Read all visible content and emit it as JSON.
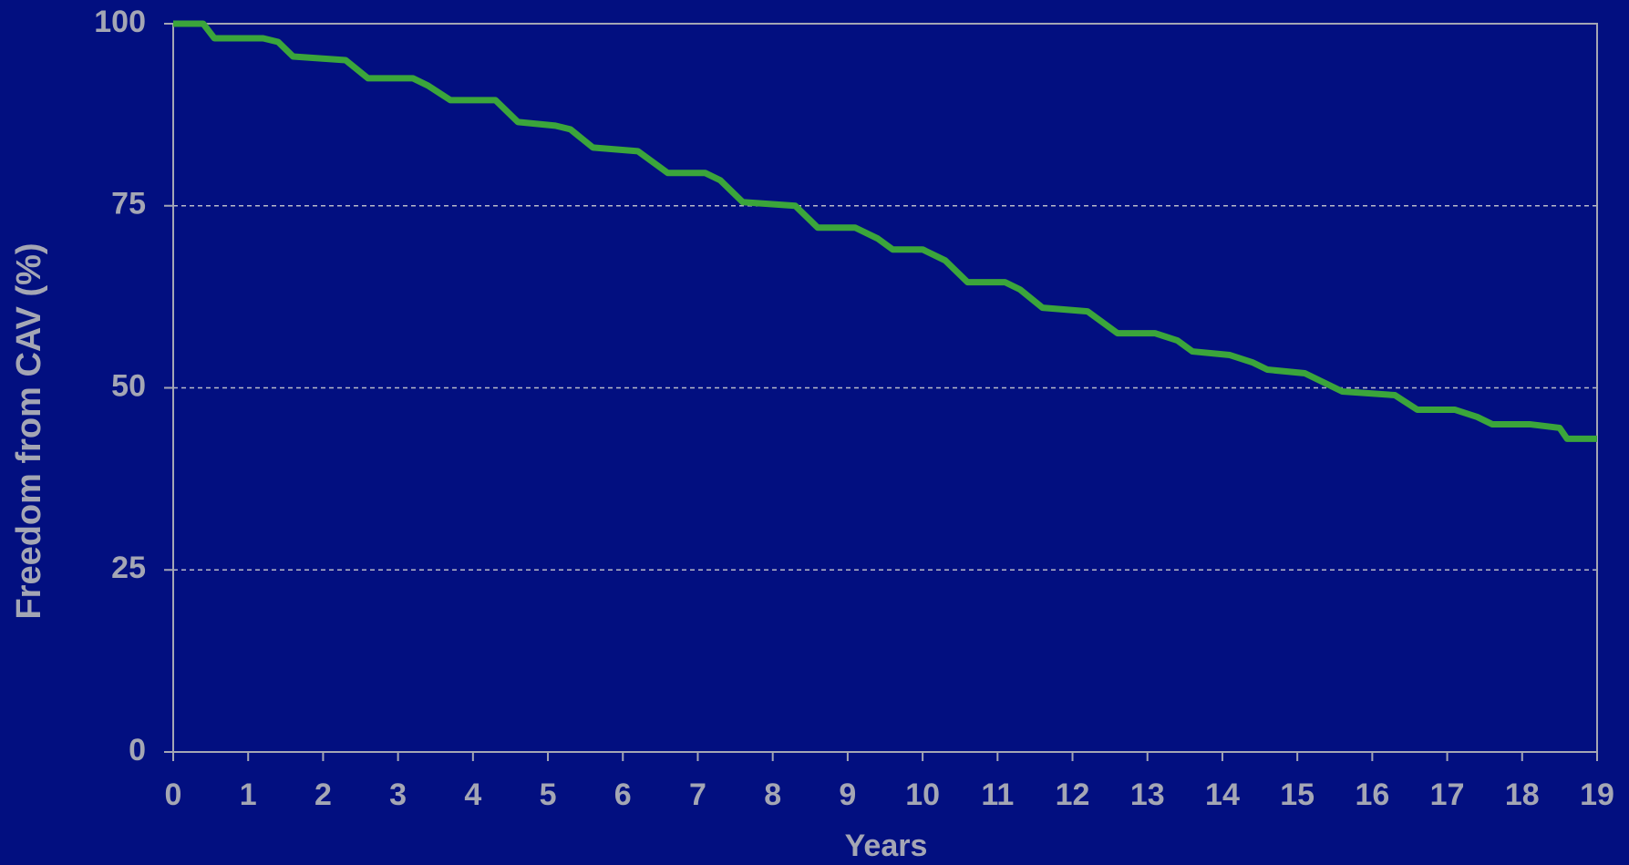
{
  "chart_data": {
    "type": "line",
    "xlabel": "Years",
    "ylabel": "Freedom from CAV (%)",
    "x": [
      0,
      0.4,
      0.55,
      1.2,
      1.4,
      1.6,
      2.3,
      2.6,
      3.2,
      3.4,
      3.7,
      4.3,
      4.6,
      5.1,
      5.3,
      5.6,
      6.2,
      6.4,
      6.6,
      7.1,
      7.3,
      7.6,
      8.3,
      8.6,
      9.1,
      9.4,
      9.6,
      10.0,
      10.3,
      10.6,
      11.1,
      11.3,
      11.6,
      12.2,
      12.4,
      12.6,
      13.1,
      13.4,
      13.6,
      14.1,
      14.4,
      14.6,
      15.1,
      15.3,
      15.6,
      16.3,
      16.6,
      17.1,
      17.4,
      17.6,
      18.1,
      18.5,
      18.6,
      19
    ],
    "series": [
      {
        "color": "#3ba53b",
        "values": [
          100,
          100,
          98,
          98,
          97.5,
          95.5,
          95,
          92.5,
          92.5,
          91.5,
          89.5,
          89.5,
          86.5,
          86,
          85.5,
          83,
          82.5,
          81,
          79.5,
          79.5,
          78.5,
          75.5,
          75,
          72,
          72,
          70.5,
          69,
          69,
          67.5,
          64.5,
          64.5,
          63.5,
          61,
          60.5,
          59,
          57.5,
          57.5,
          56.5,
          55,
          54.5,
          53.5,
          52.5,
          52,
          51,
          49.5,
          49,
          47,
          47,
          46,
          45,
          45,
          44.5,
          43,
          43
        ]
      }
    ],
    "xlim": [
      0,
      19
    ],
    "xticks": [
      0,
      1,
      2,
      3,
      4,
      5,
      6,
      7,
      8,
      9,
      10,
      11,
      12,
      13,
      14,
      15,
      16,
      17,
      18,
      19
    ],
    "ylim": [
      0,
      100
    ],
    "yticks": [
      0,
      25,
      50,
      75,
      100
    ],
    "grid": true
  }
}
